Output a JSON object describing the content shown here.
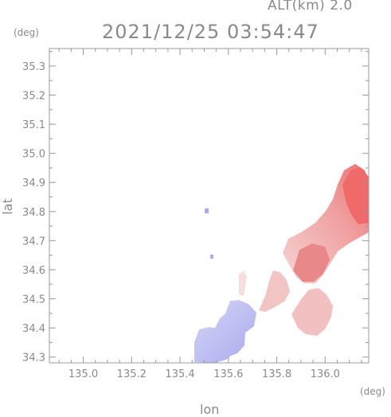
{
  "header": {
    "altitude_label": "ALT(km) 2.0",
    "timestamp": "2021/12/25 03:54:47"
  },
  "axes": {
    "y_unit": "(deg)",
    "x_unit": "(deg)",
    "xlabel": "lon",
    "ylabel": "lat",
    "xlim": [
      134.86,
      136.18
    ],
    "ylim": [
      34.28,
      35.36
    ],
    "x_ticks": [
      "135.0",
      "135.2",
      "135.4",
      "135.6",
      "135.8",
      "136.0"
    ],
    "y_ticks": [
      "34.3",
      "34.4",
      "34.5",
      "34.6",
      "34.7",
      "34.8",
      "34.9",
      "35.0",
      "35.1",
      "35.2",
      "35.3"
    ]
  },
  "colors": {
    "frame": "#999999",
    "approaching": "#b8b8f2",
    "receding_light": "#f3c8c8",
    "receding_mid": "#f0a4a4",
    "receding_strong": "#f07878"
  }
}
